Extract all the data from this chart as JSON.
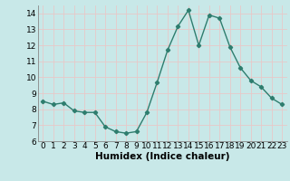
{
  "x": [
    0,
    1,
    2,
    3,
    4,
    5,
    6,
    7,
    8,
    9,
    10,
    11,
    12,
    13,
    14,
    15,
    16,
    17,
    18,
    19,
    20,
    21,
    22,
    23
  ],
  "y": [
    8.5,
    8.3,
    8.4,
    7.9,
    7.8,
    7.8,
    6.9,
    6.6,
    6.5,
    6.6,
    7.8,
    9.7,
    11.7,
    13.2,
    14.2,
    12.0,
    13.9,
    13.7,
    11.9,
    10.6,
    9.8,
    9.4,
    8.7,
    8.3
  ],
  "line_color": "#2e7d6e",
  "marker": "D",
  "marker_size": 2.2,
  "bg_color": "#c8e8e8",
  "grid_color": "#e8c8c8",
  "xlabel": "Humidex (Indice chaleur)",
  "ylim": [
    6,
    14.5
  ],
  "xlim": [
    -0.5,
    23.5
  ],
  "yticks": [
    6,
    7,
    8,
    9,
    10,
    11,
    12,
    13,
    14
  ],
  "xtick_labels": [
    "0",
    "1",
    "2",
    "3",
    "4",
    "5",
    "6",
    "7",
    "8",
    "9",
    "10",
    "11",
    "12",
    "13",
    "14",
    "15",
    "16",
    "17",
    "18",
    "19",
    "20",
    "21",
    "22",
    "23"
  ],
  "xlabel_fontsize": 7.5,
  "tick_fontsize": 6.5,
  "line_width": 1.0
}
